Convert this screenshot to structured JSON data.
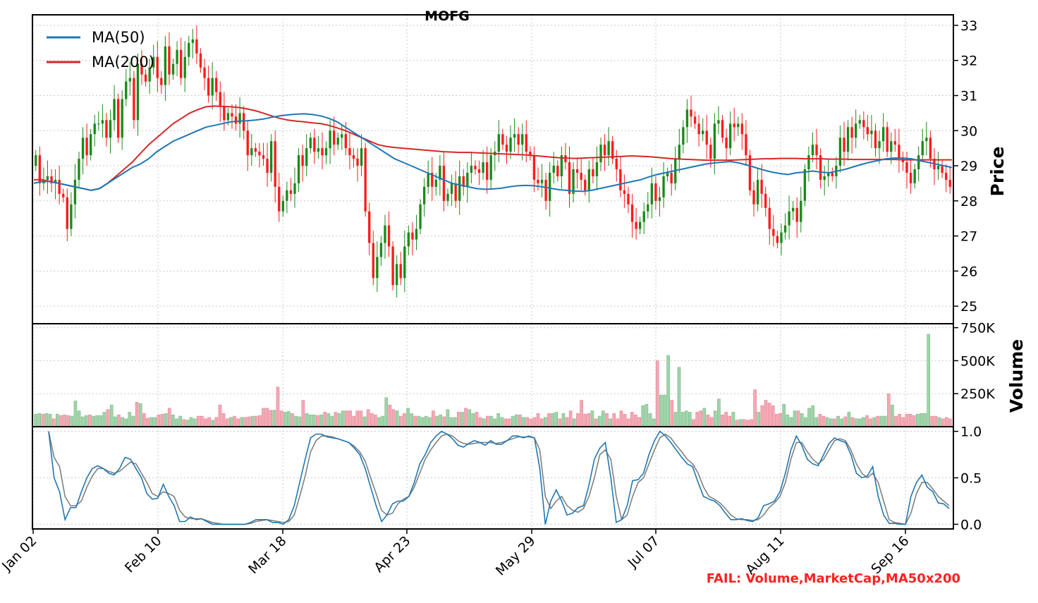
{
  "chart_data": {
    "type": "candlestick",
    "title": "MOFG",
    "legend_position": "top-left",
    "grid": true,
    "x_ticks": [
      "Jan 02",
      "Feb 10",
      "Mar 18",
      "Apr 23",
      "May 29",
      "Jul 07",
      "Aug 11",
      "Sep 16"
    ],
    "colors": {
      "up": "#1a8a1a",
      "down": "#ff1a1a",
      "ma50": "#1f77b4",
      "ma200": "#d62728",
      "k_line": "#1f77b4",
      "d_line": "#808080",
      "vol_up": "#9fd3a8",
      "vol_down": "#f4a7b3"
    },
    "price_panel": {
      "ylabel": "Price",
      "ylim": [
        24.5,
        33.3
      ],
      "yticks": [
        "25",
        "26",
        "27",
        "28",
        "29",
        "30",
        "31",
        "32",
        "33"
      ],
      "legend": [
        "MA(50)",
        "MA(200)"
      ],
      "closes": [
        29.3,
        28.5,
        28.6,
        28.7,
        28.5,
        28.6,
        28.2,
        28.1,
        27.2,
        27.9,
        28.6,
        29.2,
        29.8,
        29.3,
        29.9,
        30.2,
        30.2,
        30.3,
        29.8,
        30.3,
        30.9,
        29.8,
        30.9,
        31.4,
        31.5,
        30.3,
        31.9,
        31.6,
        31.4,
        31.8,
        32.1,
        31.5,
        31.3,
        32.4,
        31.6,
        31.9,
        32.3,
        31.5,
        32.1,
        32.5,
        32.6,
        32.2,
        31.8,
        31.5,
        31.0,
        31.5,
        31.1,
        30.7,
        30.3,
        30.5,
        30.4,
        30.2,
        30.5,
        30.0,
        29.3,
        29.5,
        29.4,
        29.3,
        29.2,
        28.8,
        29.7,
        28.4,
        27.7,
        28.0,
        28.3,
        28.2,
        28.5,
        29.3,
        29.0,
        29.5,
        29.8,
        29.4,
        29.5,
        29.3,
        29.5,
        30.0,
        29.6,
        29.8,
        29.9,
        29.5,
        29.3,
        29.2,
        29.0,
        29.5,
        27.7,
        26.8,
        25.8,
        26.4,
        26.8,
        27.3,
        26.7,
        25.6,
        26.2,
        25.8,
        26.7,
        27.1,
        26.9,
        27.2,
        27.9,
        28.4,
        28.8,
        28.4,
        28.6,
        29.0,
        28.0,
        28.2,
        28.5,
        28.0,
        28.7,
        28.4,
        28.8,
        29.0,
        28.9,
        28.8,
        29.1,
        28.6,
        29.3,
        29.4,
        29.9,
        29.6,
        29.4,
        29.8,
        29.9,
        29.6,
        29.9,
        29.4,
        29.3,
        28.6,
        28.5,
        28.6,
        28.0,
        28.8,
        29.0,
        28.7,
        29.3,
        29.1,
        28.2,
        28.9,
        28.8,
        28.6,
        28.3,
        28.9,
        28.7,
        29.1,
        29.6,
        29.3,
        29.7,
        29.2,
        28.9,
        28.3,
        28.2,
        27.9,
        27.4,
        27.2,
        27.4,
        27.7,
        27.9,
        28.5,
        28.0,
        28.1,
        28.7,
        28.8,
        28.5,
        29.2,
        29.6,
        30.1,
        30.6,
        30.4,
        30.2,
        29.9,
        30.0,
        29.6,
        29.2,
        30.2,
        30.3,
        29.8,
        29.5,
        30.2,
        30.1,
        30.2,
        29.9,
        29.3,
        28.3,
        27.9,
        28.6,
        28.2,
        27.8,
        27.2,
        27.0,
        26.8,
        27.1,
        27.3,
        27.7,
        27.8,
        27.4,
        28.0,
        28.9,
        29.3,
        29.6,
        29.3,
        28.6,
        28.7,
        28.8,
        28.7,
        29.0,
        29.8,
        29.4,
        30.1,
        29.8,
        30.2,
        30.3,
        30.1,
        29.9,
        30.0,
        29.5,
        29.7,
        30.1,
        29.4,
        29.7,
        29.6,
        29.2,
        29.1,
        28.8,
        28.5,
        28.9,
        29.3,
        29.7,
        29.8,
        29.2,
        28.9,
        29.0,
        28.8,
        28.6,
        28.4
      ],
      "ma50": [
        28.5,
        28.55,
        28.55,
        28.5,
        28.45,
        28.4,
        28.35,
        28.3,
        28.35,
        28.5,
        28.65,
        28.8,
        28.95,
        29.05,
        29.2,
        29.4,
        29.55,
        29.7,
        29.8,
        29.9,
        30.0,
        30.1,
        30.15,
        30.2,
        30.25,
        30.27,
        30.28,
        30.3,
        30.33,
        30.38,
        30.42,
        30.45,
        30.47,
        30.48,
        30.46,
        30.42,
        30.35,
        30.25,
        30.1,
        29.95,
        29.8,
        29.65,
        29.5,
        29.35,
        29.2,
        29.1,
        29.0,
        28.9,
        28.8,
        28.7,
        28.6,
        28.5,
        28.45,
        28.4,
        28.35,
        28.33,
        28.34,
        28.36,
        28.4,
        28.43,
        28.44,
        28.43,
        28.4,
        28.36,
        28.32,
        28.3,
        28.28,
        28.27,
        28.3,
        28.35,
        28.4,
        28.45,
        28.5,
        28.55,
        28.6,
        28.68,
        28.75,
        28.8,
        28.85,
        28.9,
        28.95,
        29.0,
        29.05,
        29.08,
        29.1,
        29.12,
        29.08,
        29.02,
        28.95,
        28.88,
        28.82,
        28.78,
        28.75,
        28.8,
        28.82,
        28.85,
        28.82,
        28.8,
        28.85,
        28.9,
        28.97,
        29.04,
        29.1,
        29.15,
        29.2,
        29.22,
        29.22,
        29.2,
        29.15,
        29.1,
        29.05,
        29.0,
        28.95
      ],
      "ma200": [
        28.6,
        28.6,
        28.55,
        28.5,
        28.45,
        28.4,
        28.35,
        28.3,
        28.35,
        28.5,
        28.7,
        28.9,
        29.1,
        29.35,
        29.6,
        29.8,
        30.0,
        30.2,
        30.35,
        30.5,
        30.6,
        30.68,
        30.7,
        30.69,
        30.68,
        30.66,
        30.62,
        30.57,
        30.5,
        30.42,
        30.35,
        30.3,
        30.27,
        30.25,
        30.22,
        30.2,
        30.15,
        30.08,
        30.0,
        29.9,
        29.8,
        29.7,
        29.6,
        29.55,
        29.52,
        29.5,
        29.48,
        29.46,
        29.44,
        29.42,
        29.4,
        29.39,
        29.38,
        29.38,
        29.37,
        29.36,
        29.35,
        29.34,
        29.33,
        29.32,
        29.31,
        29.29,
        29.27,
        29.25,
        29.23,
        29.22,
        29.21,
        29.22,
        29.23,
        29.24,
        29.25,
        29.26,
        29.27,
        29.28,
        29.27,
        29.26,
        29.24,
        29.22,
        29.2,
        29.19,
        29.18,
        29.17,
        29.16,
        29.16,
        29.16,
        29.16,
        29.17,
        29.18,
        29.19,
        29.2,
        29.2,
        29.21,
        29.21,
        29.21,
        29.2,
        29.2,
        29.2,
        29.19,
        29.19,
        29.19,
        29.18,
        29.18,
        29.18,
        29.18,
        29.18,
        29.18,
        29.17,
        29.17,
        29.17,
        29.17,
        29.17,
        29.17,
        29.17
      ]
    },
    "volume_panel": {
      "ylabel": "Volume",
      "ylim": [
        0,
        780000
      ],
      "yticks": [
        "250K",
        "500K",
        "750K"
      ],
      "values": [
        95000,
        100000,
        95000,
        100000,
        95000,
        60000,
        95000,
        85000,
        90000,
        85000,
        80000,
        195000,
        120000,
        75000,
        85000,
        90000,
        80000,
        85000,
        85000,
        110000,
        130000,
        165000,
        75000,
        90000,
        70000,
        60000,
        110000,
        80000,
        185000,
        175000,
        100000,
        65000,
        70000,
        70000,
        90000,
        95000,
        100000,
        140000,
        90000,
        60000,
        80000,
        55000,
        50000,
        70000,
        60000,
        80000,
        80000,
        60000,
        70000,
        50000,
        70000,
        165000,
        100000,
        60000,
        70000,
        80000,
        60000,
        70000,
        70000,
        75000,
        80000,
        80000,
        85000,
        140000,
        140000,
        125000,
        125000,
        300000,
        120000,
        110000,
        115000,
        100000,
        80000,
        75000,
        200000,
        100000,
        90000,
        90000,
        85000,
        90000,
        110000,
        100000,
        80000,
        110000,
        100000,
        120000,
        120000,
        120000,
        80000,
        120000,
        120000,
        75000,
        130000,
        100000,
        90000,
        70000,
        80000,
        220000,
        165000,
        130000,
        120000,
        80000,
        100000,
        140000,
        100000,
        80000,
        80000,
        70000,
        80000,
        70000,
        120000,
        80000,
        90000,
        75000,
        130000,
        70000,
        70000,
        110000,
        110000,
        140000,
        130000,
        100000,
        110000,
        70000,
        60000,
        80000,
        80000,
        60000,
        100000,
        70000,
        60000,
        60000,
        80000,
        90000,
        90000,
        70000,
        70000,
        60000,
        70000,
        100000,
        60000,
        70000,
        100000,
        100000,
        110000,
        60000,
        100000,
        70000,
        120000,
        60000,
        100000,
        200000,
        95000,
        100000,
        120000,
        60000,
        80000,
        120000,
        100000,
        60000,
        100000,
        60000,
        120000,
        95000,
        60000,
        110000,
        90000,
        70000,
        160000,
        170000,
        100000,
        60000,
        500000,
        240000,
        240000,
        540000,
        200000,
        110000,
        450000,
        110000,
        120000,
        110000,
        55000,
        110000,
        120000,
        140000,
        90000,
        70000,
        120000,
        210000,
        90000,
        110000,
        80000,
        110000,
        50000,
        55000,
        55000,
        50000,
        55000,
        280000,
        110000,
        160000,
        200000,
        180000,
        160000,
        95000,
        100000,
        170000,
        90000,
        70000,
        120000,
        120000,
        100000,
        70000,
        140000,
        160000,
        70000,
        95000,
        80000,
        70000,
        60000,
        60000,
        80000,
        60000,
        75000,
        110000,
        70000,
        60000,
        60000,
        70000,
        85000,
        60000,
        70000,
        80000,
        80000,
        80000,
        250000,
        165000,
        80000,
        95000,
        70000,
        95000,
        95000,
        85000,
        95000,
        100000,
        100000,
        700000,
        80000,
        80000,
        70000,
        60000,
        70000,
        60000
      ]
    },
    "oscillator_panel": {
      "ylim": [
        -0.05,
        1.05
      ],
      "yticks": [
        "0.0",
        "0.5",
        "1.0"
      ],
      "k_values": [
        1.0,
        0.5,
        0.35,
        0.05,
        0.18,
        0.18,
        0.35,
        0.5,
        0.6,
        0.63,
        0.6,
        0.55,
        0.53,
        0.6,
        0.72,
        0.7,
        0.6,
        0.5,
        0.33,
        0.27,
        0.28,
        0.43,
        0.3,
        0.2,
        0.03,
        0.03,
        0.08,
        0.05,
        0.06,
        0.03,
        0.0,
        0.0,
        0.0,
        0.0,
        0.0,
        0.0,
        0.0,
        0.02,
        0.05,
        0.05,
        0.05,
        0.02,
        0.02,
        0.0,
        0.05,
        0.2,
        0.45,
        0.7,
        0.93,
        0.97,
        0.97,
        0.94,
        0.93,
        0.92,
        0.9,
        0.88,
        0.82,
        0.75,
        0.6,
        0.4,
        0.2,
        0.03,
        0.1,
        0.22,
        0.25,
        0.25,
        0.3,
        0.45,
        0.65,
        0.75,
        0.88,
        0.95,
        1.0,
        0.97,
        0.92,
        0.85,
        0.83,
        0.87,
        0.9,
        0.88,
        0.85,
        0.9,
        0.86,
        0.86,
        0.9,
        0.95,
        0.95,
        0.93,
        0.95,
        0.93,
        0.6,
        0.0,
        0.25,
        0.37,
        0.25,
        0.1,
        0.12,
        0.18,
        0.2,
        0.42,
        0.7,
        0.82,
        0.88,
        0.5,
        0.02,
        0.05,
        0.2,
        0.47,
        0.48,
        0.55,
        0.75,
        0.9,
        1.0,
        0.95,
        0.88,
        0.8,
        0.72,
        0.65,
        0.62,
        0.45,
        0.3,
        0.27,
        0.25,
        0.2,
        0.12,
        0.05,
        0.05,
        0.06,
        0.04,
        0.03,
        0.07,
        0.2,
        0.22,
        0.25,
        0.35,
        0.55,
        0.8,
        0.95,
        0.85,
        0.7,
        0.65,
        0.63,
        0.75,
        0.87,
        0.93,
        0.9,
        0.88,
        0.75,
        0.55,
        0.5,
        0.52,
        0.62,
        0.3,
        0.1,
        0.01,
        0.01,
        0.0,
        0.0,
        0.3,
        0.45,
        0.53,
        0.4,
        0.35,
        0.23,
        0.22,
        0.17
      ],
      "d_values": [
        1.0,
        0.72,
        0.62,
        0.3,
        0.2,
        0.2,
        0.25,
        0.4,
        0.52,
        0.6,
        0.6,
        0.57,
        0.55,
        0.57,
        0.62,
        0.67,
        0.65,
        0.55,
        0.45,
        0.33,
        0.3,
        0.35,
        0.33,
        0.3,
        0.15,
        0.08,
        0.06,
        0.06,
        0.06,
        0.04,
        0.02,
        0.01,
        0.0,
        0.0,
        0.0,
        0.0,
        0.0,
        0.01,
        0.03,
        0.04,
        0.05,
        0.04,
        0.03,
        0.02,
        0.03,
        0.1,
        0.3,
        0.52,
        0.78,
        0.9,
        0.95,
        0.95,
        0.94,
        0.92,
        0.9,
        0.88,
        0.84,
        0.78,
        0.68,
        0.5,
        0.33,
        0.15,
        0.1,
        0.12,
        0.22,
        0.27,
        0.3,
        0.4,
        0.55,
        0.7,
        0.8,
        0.88,
        0.95,
        0.97,
        0.95,
        0.9,
        0.87,
        0.86,
        0.87,
        0.88,
        0.88,
        0.88,
        0.87,
        0.88,
        0.9,
        0.92,
        0.94,
        0.94,
        0.94,
        0.93,
        0.8,
        0.3,
        0.17,
        0.25,
        0.3,
        0.2,
        0.15,
        0.13,
        0.17,
        0.3,
        0.5,
        0.75,
        0.8,
        0.7,
        0.3,
        0.05,
        0.1,
        0.3,
        0.45,
        0.5,
        0.65,
        0.8,
        0.93,
        0.97,
        0.93,
        0.85,
        0.78,
        0.7,
        0.65,
        0.55,
        0.4,
        0.3,
        0.27,
        0.23,
        0.17,
        0.1,
        0.06,
        0.05,
        0.05,
        0.04,
        0.05,
        0.1,
        0.18,
        0.23,
        0.3,
        0.45,
        0.7,
        0.88,
        0.88,
        0.78,
        0.7,
        0.65,
        0.7,
        0.8,
        0.9,
        0.92,
        0.9,
        0.8,
        0.65,
        0.55,
        0.5,
        0.55,
        0.45,
        0.25,
        0.05,
        0.02,
        0.01,
        0.0,
        0.12,
        0.33,
        0.45,
        0.45,
        0.38,
        0.3,
        0.25,
        0.2
      ]
    }
  },
  "annotation": "FAIL: Volume,MarketCap,MA50x200"
}
